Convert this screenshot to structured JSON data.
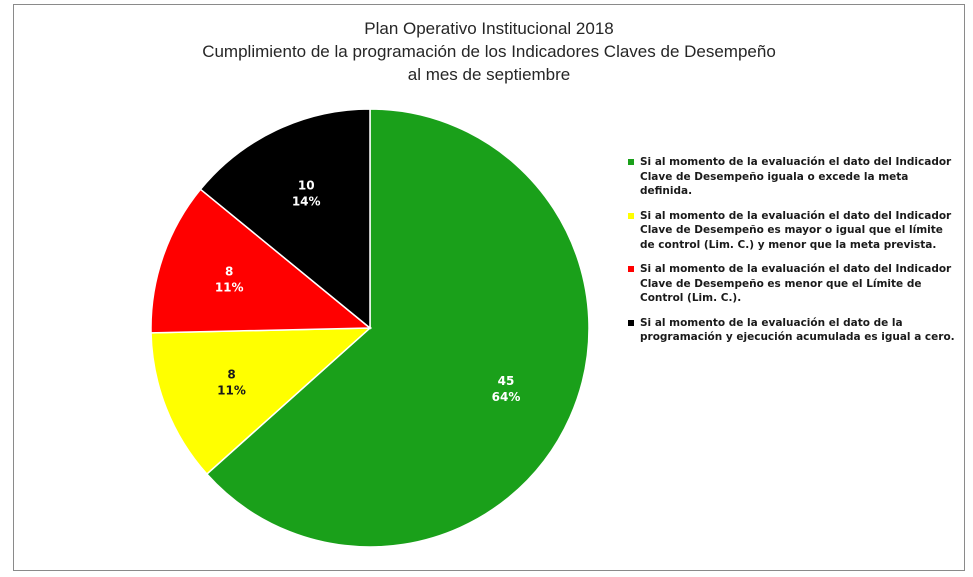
{
  "chart_data": {
    "type": "pie",
    "title": "Plan Operativo Institucional 2018",
    "subtitle_lines": [
      "Cumplimiento de la programación de los Indicadores Claves de Desempeño",
      "al mes de septiembre"
    ],
    "slices": [
      {
        "value": 45,
        "percent": "64%",
        "color": "#1aa01a",
        "label_color": "#ffffff",
        "legend": "Si al momento de la evaluación el dato del Indicador Clave de Desempeño iguala o excede la meta definida."
      },
      {
        "value": 8,
        "percent": "11%",
        "color": "#ffff00",
        "label_color": "#1a1a1a",
        "legend": "Si al momento de la evaluación el dato del Indicador Clave de Desempeño es mayor o igual que el límite de control (Lim. C.) y menor que la meta prevista."
      },
      {
        "value": 8,
        "percent": "11%",
        "color": "#ff0000",
        "label_color": "#ffffff",
        "legend": "Si al momento de la evaluación el dato del Indicador Clave de Desempeño es menor que el Límite de Control (Lim. C.)."
      },
      {
        "value": 10,
        "percent": "14%",
        "color": "#000000",
        "label_color": "#ffffff",
        "legend": "Si al momento de la evaluación el dato de la programación y ejecución acumulada es igual a cero."
      }
    ],
    "legend_position": "right"
  }
}
